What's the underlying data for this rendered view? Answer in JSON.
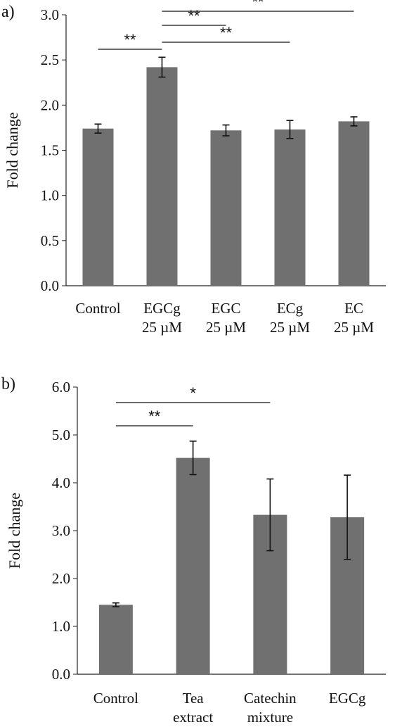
{
  "chart_data": [
    {
      "panel": "a)",
      "type": "bar",
      "ylabel": "Fold change",
      "ylim": [
        0,
        3.0
      ],
      "yticks": [
        "0.0",
        "0.5",
        "1.0",
        "1.5",
        "2.0",
        "2.5",
        "3.0"
      ],
      "categories": [
        [
          "Control"
        ],
        [
          "EGCg",
          "25 µM"
        ],
        [
          "EGC",
          "25 µM"
        ],
        [
          "ECg",
          "25 µM"
        ],
        [
          "EC",
          "25 µM"
        ]
      ],
      "values": [
        1.74,
        2.42,
        1.72,
        1.73,
        1.82
      ],
      "errors": [
        0.05,
        0.11,
        0.06,
        0.1,
        0.05
      ],
      "bar_color": "#707070",
      "significance": [
        {
          "from": 0,
          "to": 1,
          "label": "**"
        },
        {
          "from": 1,
          "to": 2,
          "label": "**"
        },
        {
          "from": 1,
          "to": 3,
          "label": "**"
        },
        {
          "from": 1,
          "to": 4,
          "label": "**"
        }
      ]
    },
    {
      "panel": "b)",
      "type": "bar",
      "ylabel": "Fold change",
      "ylim": [
        0,
        6.0
      ],
      "yticks": [
        "0.0",
        "1.0",
        "2.0",
        "3.0",
        "4.0",
        "5.0",
        "6.0"
      ],
      "categories": [
        [
          "Control"
        ],
        [
          "Tea",
          "extract"
        ],
        [
          "Catechin",
          "mixture"
        ],
        [
          "EGCg"
        ]
      ],
      "values": [
        1.45,
        4.52,
        3.33,
        3.28
      ],
      "errors": [
        0.04,
        0.35,
        0.75,
        0.88
      ],
      "bar_color": "#707070",
      "significance": [
        {
          "from": 0,
          "to": 1,
          "label": "**"
        },
        {
          "from": 0,
          "to": 2,
          "label": "*"
        }
      ]
    }
  ]
}
